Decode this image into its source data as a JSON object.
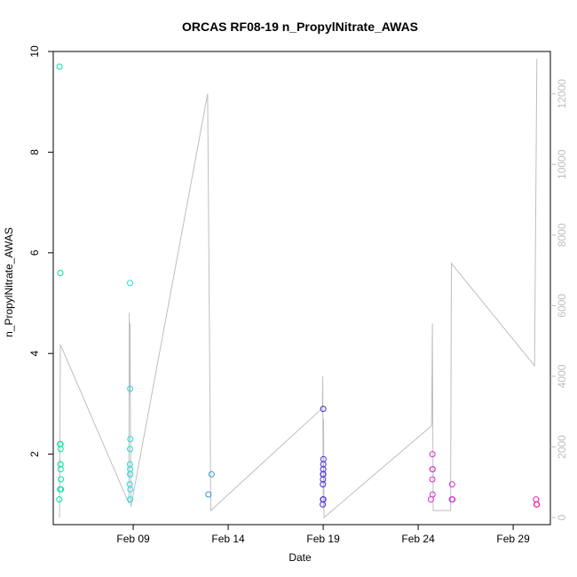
{
  "chart_data": {
    "type": "scatter",
    "title": "ORCAS RF08-19 n_PropylNitrate_AWAS",
    "xlabel": "Date",
    "ylabel": "n_PropylNitrate_AWAS",
    "x_type": "date",
    "x_range": [
      "2016-02-04T19:00",
      "2016-03-01T23:00"
    ],
    "y_range": [
      0.6,
      10.0
    ],
    "y2_range": [
      -200,
      13200
    ],
    "x_ticks": [
      {
        "value": "2016-02-09T00:00",
        "label": "Feb 09"
      },
      {
        "value": "2016-02-14T00:00",
        "label": "Feb 14"
      },
      {
        "value": "2016-02-19T00:00",
        "label": "Feb 19"
      },
      {
        "value": "2016-02-24T00:00",
        "label": "Feb 24"
      },
      {
        "value": "2016-02-29T00:00",
        "label": "Feb 29"
      }
    ],
    "y_ticks": [
      {
        "value": 2,
        "label": "2"
      },
      {
        "value": 4,
        "label": "4"
      },
      {
        "value": 6,
        "label": "6"
      },
      {
        "value": 8,
        "label": "8"
      },
      {
        "value": 10,
        "label": "10"
      }
    ],
    "y2_ticks": [
      {
        "value": 0,
        "label": "0"
      },
      {
        "value": 2000,
        "label": "2000"
      },
      {
        "value": 4000,
        "label": "4000"
      },
      {
        "value": 6000,
        "label": "6000"
      },
      {
        "value": 8000,
        "label": "8000"
      },
      {
        "value": 10000,
        "label": "10000"
      },
      {
        "value": 12000,
        "label": "12000"
      }
    ],
    "grid": false,
    "legend": "none",
    "colors": {
      "altitude_line": "#bebebe",
      "frame": "#000000"
    },
    "scatter_series": [
      {
        "color": "#00e5a8",
        "points": [
          {
            "x": "2016-02-05T03:00",
            "y": 9.7
          },
          {
            "x": "2016-02-05T03:30",
            "y": 2.2
          },
          {
            "x": "2016-02-05T03:40",
            "y": 1.3
          },
          {
            "x": "2016-02-05T02:40",
            "y": 1.1
          },
          {
            "x": "2016-02-05T04:00",
            "y": 5.6
          },
          {
            "x": "2016-02-05T04:10",
            "y": 2.2
          },
          {
            "x": "2016-02-05T04:20",
            "y": 2.1
          },
          {
            "x": "2016-02-05T04:00",
            "y": 1.8
          },
          {
            "x": "2016-02-05T04:10",
            "y": 1.8
          },
          {
            "x": "2016-02-05T04:20",
            "y": 1.7
          },
          {
            "x": "2016-02-05T04:30",
            "y": 1.5
          },
          {
            "x": "2016-02-05T04:40",
            "y": 1.3
          }
        ]
      },
      {
        "color": "#1ee0e0",
        "points": [
          {
            "x": "2016-02-08T20:00",
            "y": 5.4
          },
          {
            "x": "2016-02-08T20:10",
            "y": 3.3
          },
          {
            "x": "2016-02-08T20:20",
            "y": 2.3
          },
          {
            "x": "2016-02-08T20:00",
            "y": 2.1
          },
          {
            "x": "2016-02-08T19:50",
            "y": 1.8
          },
          {
            "x": "2016-02-08T20:10",
            "y": 1.7
          },
          {
            "x": "2016-02-08T20:20",
            "y": 1.6
          },
          {
            "x": "2016-02-08T20:00",
            "y": 1.6
          },
          {
            "x": "2016-02-08T19:40",
            "y": 1.4
          },
          {
            "x": "2016-02-08T20:20",
            "y": 1.3
          },
          {
            "x": "2016-02-08T20:10",
            "y": 1.1
          }
        ]
      },
      {
        "color": "#3a8ee6",
        "points": [
          {
            "x": "2016-02-12T23:00",
            "y": 1.2
          },
          {
            "x": "2016-02-13T03:00",
            "y": 1.6
          }
        ]
      },
      {
        "color": "#4a2ad8",
        "points": [
          {
            "x": "2016-02-19T00:00",
            "y": 2.9
          },
          {
            "x": "2016-02-19T00:20",
            "y": 1.9
          },
          {
            "x": "2016-02-19T00:10",
            "y": 1.8
          },
          {
            "x": "2016-02-19T00:00",
            "y": 1.7
          },
          {
            "x": "2016-02-18T23:50",
            "y": 1.6
          },
          {
            "x": "2016-02-19T00:10",
            "y": 1.6
          },
          {
            "x": "2016-02-18T23:50",
            "y": 1.5
          },
          {
            "x": "2016-02-18T23:40",
            "y": 1.4
          },
          {
            "x": "2016-02-18T23:50",
            "y": 1.1
          },
          {
            "x": "2016-02-19T00:10",
            "y": 1.1
          },
          {
            "x": "2016-02-18T23:30",
            "y": 1.0
          }
        ]
      },
      {
        "color": "#d633d6",
        "points": [
          {
            "x": "2016-02-24T18:00",
            "y": 2.0
          },
          {
            "x": "2016-02-24T18:10",
            "y": 1.7
          },
          {
            "x": "2016-02-24T18:00",
            "y": 1.7
          },
          {
            "x": "2016-02-24T17:50",
            "y": 1.5
          },
          {
            "x": "2016-02-24T18:10",
            "y": 1.2
          },
          {
            "x": "2016-02-24T16:00",
            "y": 1.1
          },
          {
            "x": "2016-02-25T19:00",
            "y": 1.4
          },
          {
            "x": "2016-02-25T18:40",
            "y": 1.1
          },
          {
            "x": "2016-02-25T19:20",
            "y": 1.1
          },
          {
            "x": "2016-02-25T19:00",
            "y": 1.1
          }
        ]
      },
      {
        "color": "#e61ea8",
        "points": [
          {
            "x": "2016-03-01T05:00",
            "y": 1.1
          },
          {
            "x": "2016-03-01T05:30",
            "y": 1.0
          },
          {
            "x": "2016-03-01T06:00",
            "y": 1.0
          }
        ]
      }
    ],
    "altitude_line": [
      {
        "x": "2016-02-05T03:00",
        "y2": 0
      },
      {
        "x": "2016-02-05T04:00",
        "y2": 4900
      },
      {
        "x": "2016-02-08T18:30",
        "y2": 400
      },
      {
        "x": "2016-02-08T19:00",
        "y2": 5800
      },
      {
        "x": "2016-02-08T19:30",
        "y2": 3500
      },
      {
        "x": "2016-02-08T20:00",
        "y2": 5500
      },
      {
        "x": "2016-02-08T21:00",
        "y2": 300
      },
      {
        "x": "2016-02-12T22:00",
        "y2": 12000
      },
      {
        "x": "2016-02-13T02:00",
        "y2": 200
      },
      {
        "x": "2016-02-18T23:00",
        "y2": 3100
      },
      {
        "x": "2016-02-18T23:30",
        "y2": 4000
      },
      {
        "x": "2016-02-19T00:00",
        "y2": 300
      },
      {
        "x": "2016-02-19T00:30",
        "y2": 2800
      },
      {
        "x": "2016-02-19T01:00",
        "y2": 0
      },
      {
        "x": "2016-02-24T17:00",
        "y2": 2600
      },
      {
        "x": "2016-02-24T18:00",
        "y2": 5500
      },
      {
        "x": "2016-02-24T19:00",
        "y2": 200
      },
      {
        "x": "2016-02-25T17:00",
        "y2": 200
      },
      {
        "x": "2016-02-25T18:00",
        "y2": 7200
      },
      {
        "x": "2016-03-01T03:00",
        "y2": 4300
      },
      {
        "x": "2016-03-01T06:00",
        "y2": 13000
      }
    ]
  }
}
